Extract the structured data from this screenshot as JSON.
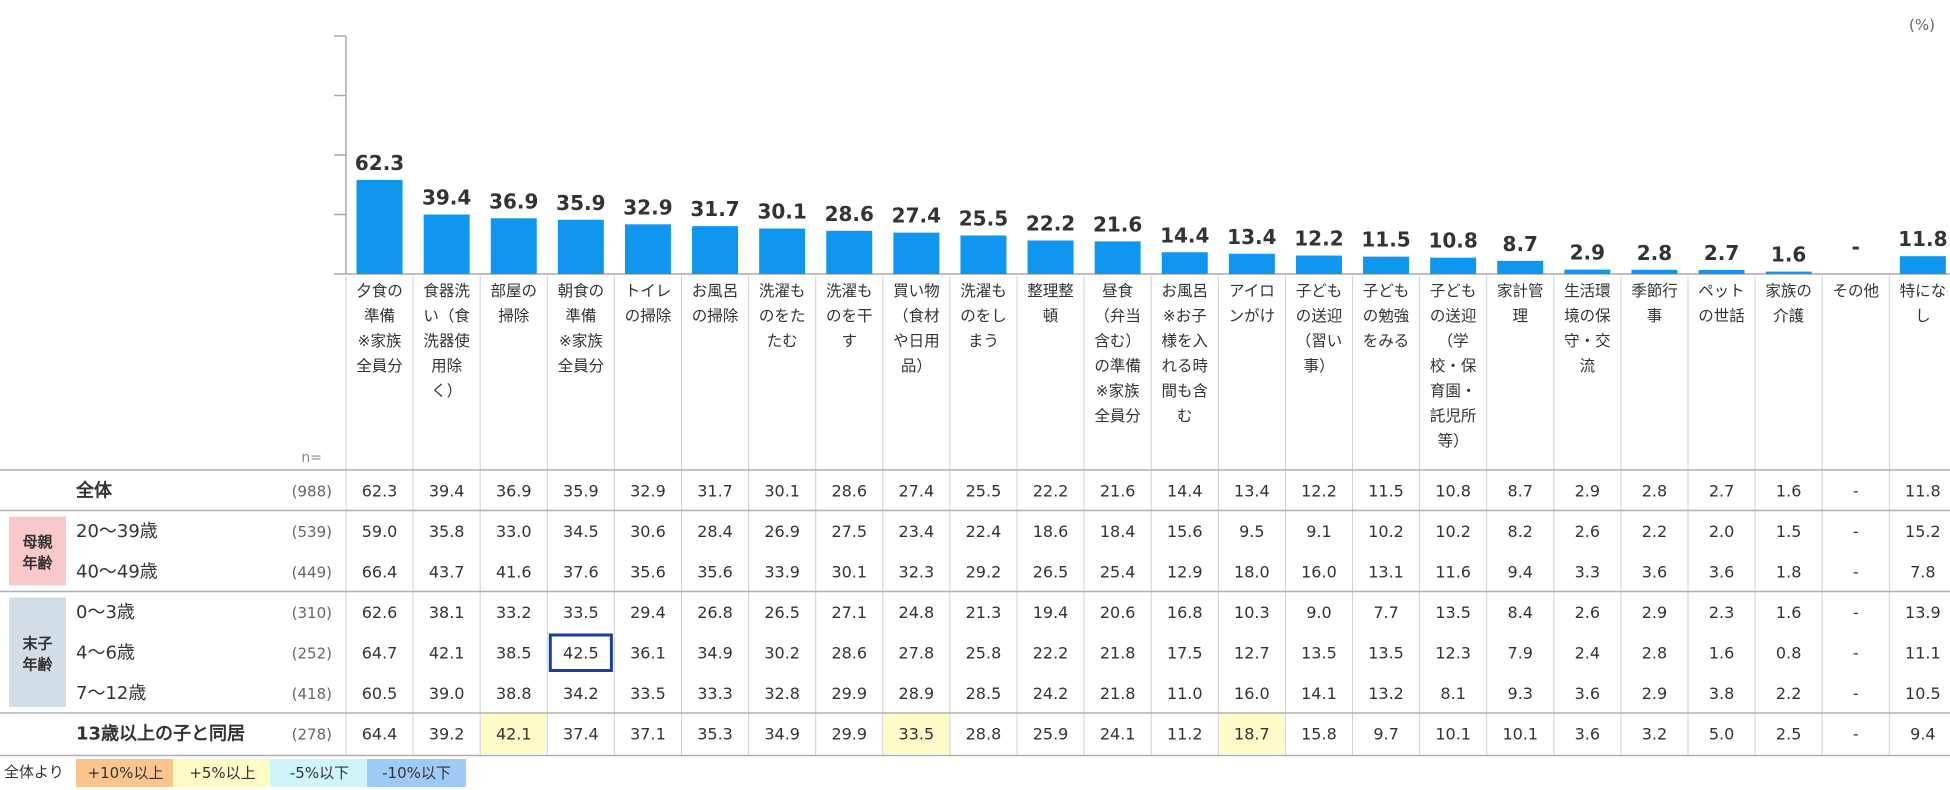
{
  "unit": "(%)",
  "n_header": "n=",
  "chart_data": {
    "type": "bar",
    "categories": [
      [
        "夕食の",
        "準備",
        "※家族",
        "全員分"
      ],
      [
        "食器洗",
        "い（食",
        "洗器使",
        "用除",
        "く）"
      ],
      [
        "部屋の",
        "掃除"
      ],
      [
        "朝食の",
        "準備",
        "※家族",
        "全員分"
      ],
      [
        "トイレ",
        "の掃除"
      ],
      [
        "お風呂",
        "の掃除"
      ],
      [
        "洗濯も",
        "のをた",
        "たむ"
      ],
      [
        "洗濯も",
        "のを干",
        "す"
      ],
      [
        "買い物",
        "（食材",
        "や日用",
        "品）"
      ],
      [
        "洗濯も",
        "のをし",
        "まう"
      ],
      [
        "整理整",
        "頓"
      ],
      [
        "昼食",
        "（弁当",
        "含む）",
        "の準備",
        "※家族",
        "全員分"
      ],
      [
        "お風呂",
        "※お子",
        "様を入",
        "れる時",
        "間も含",
        "む"
      ],
      [
        "アイロ",
        "ンがけ"
      ],
      [
        "子ども",
        "の送迎",
        "（習い",
        "事）"
      ],
      [
        "子ども",
        "の勉強",
        "をみる"
      ],
      [
        "子ども",
        "の送迎",
        "（学",
        "校・保",
        "育園・",
        "託児所",
        "等）"
      ],
      [
        "家計管",
        "理"
      ],
      [
        "生活環",
        "境の保",
        "守・交",
        "流"
      ],
      [
        "季節行",
        "事"
      ],
      [
        "ペット",
        "の世話"
      ],
      [
        "家族の",
        "介護"
      ],
      [
        "その他"
      ],
      [
        "特にな",
        "し"
      ]
    ],
    "values": [
      62.3,
      39.4,
      36.9,
      35.9,
      32.9,
      31.7,
      30.1,
      28.6,
      27.4,
      25.5,
      22.2,
      21.6,
      14.4,
      13.4,
      12.2,
      11.5,
      10.8,
      8.7,
      2.9,
      2.8,
      2.7,
      1.6,
      null,
      11.8
    ],
    "value_labels": [
      "62.3",
      "39.4",
      "36.9",
      "35.9",
      "32.9",
      "31.7",
      "30.1",
      "28.6",
      "27.4",
      "25.5",
      "22.2",
      "21.6",
      "14.4",
      "13.4",
      "12.2",
      "11.5",
      "10.8",
      "8.7",
      "2.9",
      "2.8",
      "2.7",
      "1.6",
      "-",
      "11.8"
    ],
    "ylim": [
      0,
      80
    ],
    "bar_color": "#0f97f0"
  },
  "table": {
    "rows": [
      {
        "label": "全体",
        "n": "(988)",
        "bold": true,
        "values": [
          "62.3",
          "39.4",
          "36.9",
          "35.9",
          "32.9",
          "31.7",
          "30.1",
          "28.6",
          "27.4",
          "25.5",
          "22.2",
          "21.6",
          "14.4",
          "13.4",
          "12.2",
          "11.5",
          "10.8",
          "8.7",
          "2.9",
          "2.8",
          "2.7",
          "1.6",
          "-",
          "11.8"
        ]
      },
      {
        "label": "20〜39歳",
        "n": "(539)",
        "bold": false,
        "values": [
          "59.0",
          "35.8",
          "33.0",
          "34.5",
          "30.6",
          "28.4",
          "26.9",
          "27.5",
          "23.4",
          "22.4",
          "18.6",
          "18.4",
          "15.6",
          "9.5",
          "9.1",
          "10.2",
          "10.2",
          "8.2",
          "2.6",
          "2.2",
          "2.0",
          "1.5",
          "-",
          "15.2"
        ]
      },
      {
        "label": "40〜49歳",
        "n": "(449)",
        "bold": false,
        "values": [
          "66.4",
          "43.7",
          "41.6",
          "37.6",
          "35.6",
          "35.6",
          "33.9",
          "30.1",
          "32.3",
          "29.2",
          "26.5",
          "25.4",
          "12.9",
          "18.0",
          "16.0",
          "13.1",
          "11.6",
          "9.4",
          "3.3",
          "3.6",
          "3.6",
          "1.8",
          "-",
          "7.8"
        ]
      },
      {
        "label": "0〜3歳",
        "n": "(310)",
        "bold": false,
        "values": [
          "62.6",
          "38.1",
          "33.2",
          "33.5",
          "29.4",
          "26.8",
          "26.5",
          "27.1",
          "24.8",
          "21.3",
          "19.4",
          "20.6",
          "16.8",
          "10.3",
          "9.0",
          "7.7",
          "13.5",
          "8.4",
          "2.6",
          "2.9",
          "2.3",
          "1.6",
          "-",
          "13.9"
        ]
      },
      {
        "label": "4〜6歳",
        "n": "(252)",
        "bold": false,
        "values": [
          "64.7",
          "42.1",
          "38.5",
          "42.5",
          "36.1",
          "34.9",
          "30.2",
          "28.6",
          "27.8",
          "25.8",
          "22.2",
          "21.8",
          "17.5",
          "12.7",
          "13.5",
          "13.5",
          "12.3",
          "7.9",
          "2.4",
          "2.8",
          "1.6",
          "0.8",
          "-",
          "11.1"
        ]
      },
      {
        "label": "7〜12歳",
        "n": "(418)",
        "bold": false,
        "values": [
          "60.5",
          "39.0",
          "38.8",
          "34.2",
          "33.5",
          "33.3",
          "32.8",
          "29.9",
          "28.9",
          "28.5",
          "24.2",
          "21.8",
          "11.0",
          "16.0",
          "14.1",
          "13.2",
          "8.1",
          "9.3",
          "3.6",
          "2.9",
          "3.8",
          "2.2",
          "-",
          "10.5"
        ]
      },
      {
        "label": "13歳以上の子と同居",
        "n": "(278)",
        "bold": true,
        "values": [
          "64.4",
          "39.2",
          "42.1",
          "37.4",
          "37.1",
          "35.3",
          "34.9",
          "29.9",
          "33.5",
          "28.8",
          "25.9",
          "24.1",
          "11.2",
          "18.7",
          "15.8",
          "9.7",
          "10.1",
          "10.1",
          "3.6",
          "3.2",
          "5.0",
          "2.5",
          "-",
          "9.4"
        ]
      }
    ],
    "highlights": [
      {
        "row": 6,
        "col": 2,
        "level": "+5"
      },
      {
        "row": 6,
        "col": 8,
        "level": "+5"
      },
      {
        "row": 6,
        "col": 13,
        "level": "+5"
      }
    ],
    "boxed": [
      {
        "row": 4,
        "col": 3
      }
    ],
    "groups": [
      {
        "label": [
          "母親",
          "年齢"
        ],
        "rows": [
          1,
          2
        ],
        "color": "#f8c9c9"
      },
      {
        "label": [
          "末子",
          "年齢"
        ],
        "rows": [
          3,
          5
        ],
        "color": "#d3dde5"
      }
    ]
  },
  "legend": {
    "prefix": "全体より",
    "items": [
      {
        "label": "+10%以上",
        "color": "#fbc58f"
      },
      {
        "label": "+5%以上",
        "color": "#fdfbc8"
      },
      {
        "label": "-5%以下",
        "color": "#cff5f8"
      },
      {
        "label": "-10%以下",
        "color": "#9fcaf6"
      }
    ]
  },
  "colors": {
    "plus5": "#fdfbc8",
    "box": "#1a3fa0"
  }
}
